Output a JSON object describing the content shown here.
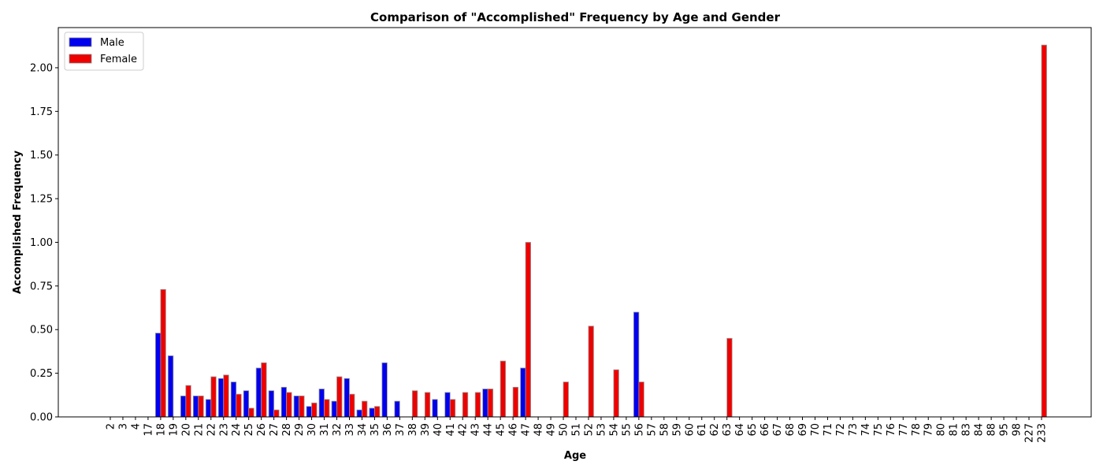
{
  "chart_data": {
    "type": "bar",
    "title": "Comparison of \"Accomplished\" Frequency by Age and Gender",
    "xlabel": "Age",
    "ylabel": "Accomplished Frequency",
    "ylim": [
      0,
      2.23
    ],
    "yticks": [
      "0.00",
      "0.25",
      "0.50",
      "0.75",
      "1.00",
      "1.25",
      "1.50",
      "1.75",
      "2.00"
    ],
    "grid": false,
    "legend_position": "top-left",
    "categories": [
      "2",
      "3",
      "4",
      "17",
      "18",
      "19",
      "20",
      "21",
      "22",
      "23",
      "24",
      "25",
      "26",
      "27",
      "28",
      "29",
      "30",
      "31",
      "32",
      "33",
      "34",
      "35",
      "36",
      "37",
      "38",
      "39",
      "40",
      "41",
      "42",
      "43",
      "44",
      "45",
      "46",
      "47",
      "48",
      "49",
      "50",
      "51",
      "52",
      "53",
      "54",
      "55",
      "56",
      "57",
      "58",
      "59",
      "60",
      "61",
      "62",
      "63",
      "64",
      "65",
      "66",
      "67",
      "68",
      "69",
      "70",
      "71",
      "72",
      "73",
      "74",
      "75",
      "76",
      "77",
      "78",
      "79",
      "80",
      "81",
      "83",
      "84",
      "88",
      "95",
      "98",
      "227",
      "233"
    ],
    "series": [
      {
        "name": "Male",
        "color": "#0000ee",
        "values": [
          0,
          0,
          0,
          0,
          0.48,
          0.35,
          0.12,
          0.12,
          0.1,
          0.22,
          0.2,
          0.15,
          0.28,
          0.15,
          0.17,
          0.12,
          0.06,
          0.16,
          0.09,
          0.22,
          0.04,
          0.05,
          0.31,
          0.09,
          0,
          0,
          0.1,
          0.14,
          0,
          0,
          0.16,
          0,
          0,
          0.28,
          0,
          0,
          0,
          0,
          0,
          0,
          0,
          0,
          0.6,
          0,
          0,
          0,
          0,
          0,
          0,
          0,
          0,
          0,
          0,
          0,
          0,
          0,
          0,
          0,
          0,
          0,
          0,
          0,
          0,
          0,
          0,
          0,
          0,
          0,
          0,
          0,
          0,
          0,
          0,
          0,
          0
        ]
      },
      {
        "name": "Female",
        "color": "#ee0000",
        "values": [
          0,
          0,
          0,
          0,
          0.73,
          0,
          0.18,
          0.12,
          0.23,
          0.24,
          0.13,
          0.05,
          0.31,
          0.04,
          0.14,
          0.12,
          0.08,
          0.1,
          0.23,
          0.13,
          0.09,
          0.06,
          0,
          0,
          0.15,
          0.14,
          0,
          0.1,
          0.14,
          0.14,
          0.16,
          0.32,
          0.17,
          1.0,
          0,
          0,
          0.2,
          0,
          0.52,
          0,
          0.27,
          0,
          0.2,
          0,
          0,
          0,
          0,
          0,
          0,
          0.45,
          0,
          0,
          0,
          0,
          0,
          0,
          0,
          0,
          0,
          0,
          0,
          0,
          0,
          0,
          0,
          0,
          0,
          0,
          0,
          0,
          0,
          0,
          0,
          0,
          2.13
        ]
      }
    ]
  }
}
